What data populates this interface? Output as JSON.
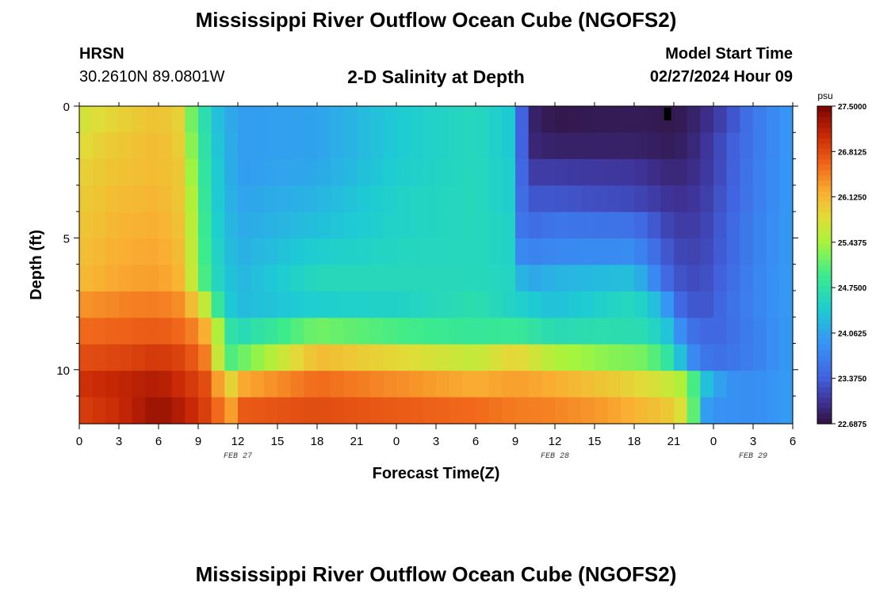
{
  "page": {
    "title_top": "Mississippi River Outflow Ocean Cube (NGOFS2)",
    "title_bottom": "Mississippi River Outflow Ocean Cube (NGOFS2)",
    "station": {
      "id": "HRSN",
      "coords": "30.2610N  89.0801W"
    },
    "plot_subtitle": "2-D Salinity at Depth",
    "model_start": {
      "label": "Model Start Time",
      "value": "02/27/2024 Hour 09"
    }
  },
  "colors": {
    "background": "#ffffff",
    "marker": "#000000"
  },
  "chart_data": {
    "type": "heatmap",
    "title": "2-D Salinity at Depth",
    "xlabel": "Forecast Time(Z)",
    "ylabel": "Depth (ft)",
    "x_range_hours": [
      0,
      54
    ],
    "x_ticks": [
      {
        "hour": 0,
        "label": "0"
      },
      {
        "hour": 3,
        "label": "3"
      },
      {
        "hour": 6,
        "label": "6"
      },
      {
        "hour": 9,
        "label": "9"
      },
      {
        "hour": 12,
        "label": "12"
      },
      {
        "hour": 15,
        "label": "15"
      },
      {
        "hour": 18,
        "label": "18"
      },
      {
        "hour": 21,
        "label": "21"
      },
      {
        "hour": 24,
        "label": "0"
      },
      {
        "hour": 27,
        "label": "3"
      },
      {
        "hour": 30,
        "label": "6"
      },
      {
        "hour": 33,
        "label": "9"
      },
      {
        "hour": 36,
        "label": "12"
      },
      {
        "hour": 39,
        "label": "15"
      },
      {
        "hour": 42,
        "label": "18"
      },
      {
        "hour": 45,
        "label": "21"
      },
      {
        "hour": 48,
        "label": "0"
      },
      {
        "hour": 51,
        "label": "3"
      },
      {
        "hour": 54,
        "label": "6"
      }
    ],
    "date_labels": [
      {
        "hour": 12,
        "label": "FEB 27"
      },
      {
        "hour": 36,
        "label": "FEB 28"
      },
      {
        "hour": 51,
        "label": "FEB 29"
      }
    ],
    "y_range_ft": [
      0,
      12.05
    ],
    "y_ticks": [
      {
        "value": 0,
        "label": "0"
      },
      {
        "value": 5,
        "label": "5"
      },
      {
        "value": 10,
        "label": "10"
      }
    ],
    "y_minor_ticks": [
      1,
      2,
      3,
      4,
      6,
      7,
      8,
      9,
      11
    ],
    "depth_layers": 12,
    "colorbar": {
      "unit": "psu",
      "min": 22.6875,
      "max": 27.5,
      "tick_values": [
        27.5,
        26.8125,
        26.125,
        25.4375,
        24.75,
        24.0625,
        23.375,
        22.6875
      ],
      "tick_labels": [
        "27.5000",
        "26.8125",
        "26.1250",
        "25.4375",
        "24.7500",
        "24.0625",
        "23.3750",
        "22.6875"
      ]
    },
    "layer_profiles": [
      {
        "layer": 0,
        "hours": [
          0,
          3,
          6,
          7.5,
          8.5,
          9.5,
          10.5,
          12,
          18,
          24,
          30,
          32.5,
          33.5,
          34.5,
          36,
          42,
          45,
          47,
          49,
          51,
          54
        ],
        "values": [
          25.7,
          25.9,
          26.05,
          25.9,
          25.2,
          24.7,
          24.3,
          24.0,
          24.05,
          24.4,
          24.6,
          24.4,
          23.4,
          22.85,
          22.75,
          22.8,
          22.75,
          22.9,
          23.2,
          23.6,
          24.0
        ]
      },
      {
        "layer": 1,
        "hours": [
          0,
          3,
          6,
          7.5,
          8.5,
          9.5,
          10.5,
          12,
          18,
          24,
          30,
          32.5,
          33.5,
          34.5,
          36,
          42,
          45,
          47,
          49,
          51,
          54
        ],
        "values": [
          25.8,
          26.0,
          26.1,
          25.95,
          25.3,
          24.75,
          24.35,
          24.0,
          24.05,
          24.4,
          24.6,
          24.4,
          23.4,
          22.9,
          22.85,
          22.85,
          22.8,
          22.95,
          23.3,
          23.6,
          24.0
        ]
      },
      {
        "layer": 2,
        "hours": [
          0,
          3,
          6,
          7.5,
          8.5,
          9.5,
          10.5,
          12,
          18,
          24,
          30,
          32.5,
          33.5,
          34.5,
          36,
          42,
          45,
          47,
          49,
          51,
          54
        ],
        "values": [
          25.9,
          26.05,
          26.1,
          26.0,
          25.4,
          24.8,
          24.4,
          24.0,
          24.1,
          24.45,
          24.6,
          24.45,
          23.45,
          23.1,
          23.1,
          23.05,
          22.9,
          23.0,
          23.3,
          23.65,
          24.0
        ]
      },
      {
        "layer": 3,
        "hours": [
          0,
          3,
          6,
          7.5,
          8.5,
          9.5,
          10.5,
          12,
          18,
          24,
          30,
          32.5,
          33.5,
          34.5,
          36,
          42,
          45,
          47,
          49,
          51,
          54
        ],
        "values": [
          25.95,
          26.1,
          26.15,
          26.0,
          25.5,
          24.85,
          24.4,
          24.05,
          24.2,
          24.5,
          24.6,
          24.45,
          23.5,
          23.3,
          23.3,
          23.2,
          23.0,
          23.05,
          23.35,
          23.65,
          24.0
        ]
      },
      {
        "layer": 4,
        "hours": [
          0,
          3,
          6,
          7.5,
          8.5,
          9.5,
          10.5,
          12,
          18,
          24,
          30,
          32.5,
          33.5,
          34.5,
          36,
          42,
          45,
          47,
          49,
          51,
          54
        ],
        "values": [
          26.0,
          26.15,
          26.2,
          26.05,
          25.55,
          24.9,
          24.45,
          24.1,
          24.3,
          24.5,
          24.6,
          24.5,
          23.6,
          23.5,
          23.6,
          23.55,
          23.1,
          23.1,
          23.4,
          23.7,
          24.0
        ]
      },
      {
        "layer": 5,
        "hours": [
          0,
          3,
          6,
          7.5,
          8.5,
          9.5,
          10.5,
          12,
          18,
          24,
          30,
          32.5,
          33.5,
          34.5,
          36,
          42,
          45,
          47,
          49,
          51,
          54
        ],
        "values": [
          26.05,
          26.2,
          26.25,
          26.1,
          25.6,
          24.95,
          24.5,
          24.15,
          24.45,
          24.55,
          24.6,
          24.5,
          23.8,
          23.75,
          23.8,
          23.85,
          23.2,
          23.15,
          23.4,
          23.7,
          24.0
        ]
      },
      {
        "layer": 6,
        "hours": [
          0,
          3,
          6,
          7.5,
          8.5,
          9.5,
          10.5,
          12,
          18,
          24,
          30,
          32.5,
          33.5,
          34.5,
          36,
          42,
          45,
          47,
          49,
          51,
          54
        ],
        "values": [
          26.1,
          26.25,
          26.3,
          26.15,
          25.65,
          25.0,
          24.55,
          24.2,
          24.6,
          24.6,
          24.6,
          24.55,
          24.2,
          24.1,
          24.2,
          24.3,
          23.3,
          23.2,
          23.45,
          23.75,
          24.0
        ]
      },
      {
        "layer": 7,
        "hours": [
          0,
          3,
          6,
          7.5,
          8.5,
          9.5,
          10,
          11,
          12,
          18,
          24,
          30,
          33,
          36,
          40,
          42,
          44,
          45.5,
          47,
          49,
          51,
          54
        ],
        "values": [
          26.35,
          26.45,
          26.5,
          26.4,
          26.1,
          25.6,
          25.2,
          24.5,
          24.25,
          24.45,
          24.5,
          24.7,
          24.5,
          24.3,
          24.5,
          24.6,
          24.2,
          23.45,
          23.25,
          23.5,
          23.75,
          24.0
        ]
      },
      {
        "layer": 8,
        "hours": [
          0,
          3,
          6,
          8,
          9,
          10,
          10.5,
          11,
          12,
          18,
          24,
          30,
          33,
          36,
          40,
          43,
          44.5,
          46,
          48,
          51,
          54
        ],
        "values": [
          26.6,
          26.65,
          26.7,
          26.6,
          26.35,
          26.05,
          25.5,
          24.9,
          24.6,
          25.2,
          25.0,
          24.85,
          24.9,
          24.65,
          24.7,
          24.65,
          24.35,
          23.6,
          23.4,
          23.7,
          24.0
        ]
      },
      {
        "layer": 9,
        "hours": [
          0,
          3,
          6,
          8,
          9.5,
          10.2,
          10.7,
          11.2,
          12,
          18,
          24,
          30,
          33,
          36,
          40,
          43,
          44.5,
          45.5,
          46.5,
          48,
          51,
          54
        ],
        "values": [
          26.8,
          26.85,
          26.95,
          26.85,
          26.5,
          26.0,
          25.4,
          25.0,
          25.1,
          26.1,
          25.85,
          25.6,
          25.9,
          25.5,
          25.3,
          25.2,
          24.8,
          24.3,
          23.8,
          23.5,
          23.7,
          24.0
        ]
      },
      {
        "layer": 10,
        "hours": [
          0,
          3,
          6,
          8,
          9.5,
          10.5,
          11.5,
          12,
          18,
          24,
          30,
          33,
          36,
          40,
          43,
          45,
          46,
          46.5,
          47.5,
          49,
          51,
          54
        ],
        "values": [
          27.0,
          27.1,
          27.2,
          27.0,
          26.8,
          26.3,
          25.9,
          26.2,
          26.6,
          26.4,
          26.2,
          26.3,
          26.2,
          26.0,
          25.8,
          25.6,
          25.4,
          25.0,
          24.3,
          23.9,
          23.85,
          24.0
        ]
      },
      {
        "layer": 11,
        "hours": [
          0,
          3,
          6,
          8,
          9.5,
          10.5,
          11.5,
          12,
          18,
          24,
          30,
          33,
          36,
          40,
          43,
          45,
          46,
          46.5,
          47,
          47.5,
          48.5,
          51,
          54
        ],
        "values": [
          26.9,
          27.05,
          27.35,
          27.15,
          26.9,
          26.6,
          26.3,
          26.7,
          26.8,
          26.7,
          26.6,
          26.5,
          26.45,
          26.3,
          26.1,
          25.95,
          25.6,
          25.1,
          24.5,
          24.0,
          23.9,
          23.85,
          24.0
        ]
      }
    ],
    "marker": {
      "hour": 44.5,
      "depth_ft": 0.3
    }
  }
}
